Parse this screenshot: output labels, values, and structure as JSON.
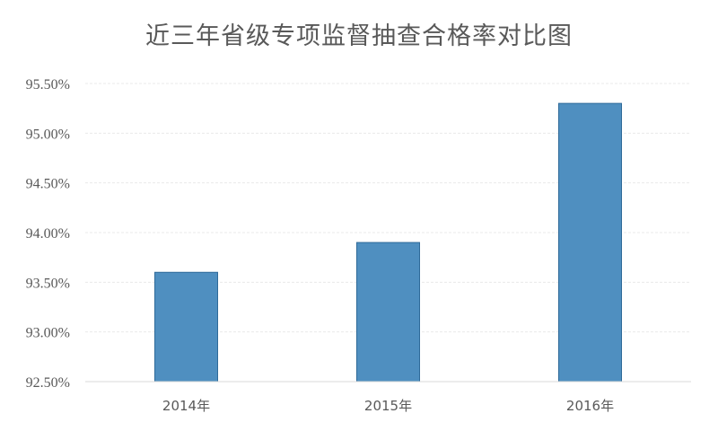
{
  "chart_data": {
    "type": "bar",
    "title": "近三年省级专项监督抽查合格率对比图",
    "categories": [
      "2014年",
      "2015年",
      "2016年"
    ],
    "values": [
      93.6,
      93.9,
      95.3
    ],
    "ylim": [
      92.5,
      95.5
    ],
    "yticks": [
      92.5,
      93.0,
      93.5,
      94.0,
      94.5,
      95.0,
      95.5
    ],
    "ytick_labels": [
      "92.50%",
      "93.00%",
      "93.50%",
      "94.00%",
      "94.50%",
      "95.00%",
      "95.50%"
    ],
    "xlabel": "",
    "ylabel": "",
    "grid": true,
    "legend": false,
    "colors": {
      "bar": "#4f8fc0",
      "bar_edge": "#2f6a99",
      "text": "#595959",
      "grid": "#e9e9e9"
    }
  }
}
